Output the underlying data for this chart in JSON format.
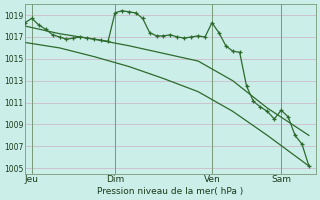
{
  "background_color": "#cceee8",
  "grid_color": "#ccbbcc",
  "line_color": "#2d6a2d",
  "title": "Pression niveau de la mer( hPa )",
  "ylim": [
    1004.5,
    1020.0
  ],
  "yticks": [
    1005,
    1007,
    1009,
    1011,
    1013,
    1015,
    1017,
    1019
  ],
  "xlim": [
    0,
    42
  ],
  "day_positions": [
    1,
    13,
    27,
    37
  ],
  "day_labels": [
    "Jeu",
    "Dim",
    "Ven",
    "Sam"
  ],
  "vline_positions": [
    1,
    13,
    27,
    37
  ],
  "series1_x": [
    0,
    1,
    2,
    3,
    4,
    5,
    6,
    7,
    8,
    9,
    10,
    11,
    12,
    13,
    14,
    15,
    16,
    17,
    18,
    19,
    20,
    21,
    22,
    23,
    24,
    25,
    26,
    27,
    28,
    29,
    30,
    31,
    32,
    33,
    34,
    35,
    36,
    37,
    38,
    39,
    40,
    41
  ],
  "series1_y": [
    1018.3,
    1018.7,
    1018.1,
    1017.7,
    1017.2,
    1017.0,
    1016.8,
    1016.9,
    1017.0,
    1016.9,
    1016.8,
    1016.7,
    1016.6,
    1019.2,
    1019.4,
    1019.3,
    1019.2,
    1018.7,
    1017.4,
    1017.1,
    1017.1,
    1017.2,
    1017.0,
    1016.9,
    1017.0,
    1017.1,
    1017.0,
    1018.3,
    1017.4,
    1016.2,
    1015.7,
    1015.6,
    1012.5,
    1011.1,
    1010.6,
    1010.2,
    1009.5,
    1010.3,
    1009.7,
    1008.0,
    1007.2,
    1005.2
  ],
  "series2_x": [
    0,
    5,
    10,
    15,
    20,
    25,
    30,
    35,
    41
  ],
  "series2_y": [
    1018.0,
    1017.3,
    1016.8,
    1016.2,
    1015.5,
    1014.8,
    1013.0,
    1010.5,
    1008.0
  ],
  "series3_x": [
    0,
    5,
    10,
    15,
    20,
    25,
    30,
    35,
    41
  ],
  "series3_y": [
    1016.5,
    1016.0,
    1015.2,
    1014.3,
    1013.2,
    1012.0,
    1010.2,
    1008.0,
    1005.2
  ]
}
